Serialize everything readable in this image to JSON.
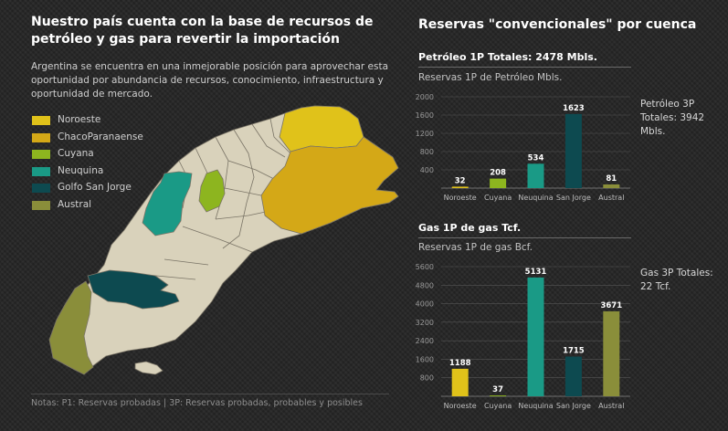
{
  "title": "Nuestro país cuenta con la base de recursos de petróleo y gas para revertir la importación",
  "intro": "Argentina se encuentra en una inmejorable posición para aprovechar esta oportunidad por abundancia de recursos, conocimiento, infraestructura y oportunidad de mercado.",
  "legend": [
    {
      "label": "Noroeste",
      "color": "#e0c21a"
    },
    {
      "label": "ChacoParanaense",
      "color": "#d4a817"
    },
    {
      "label": "Cuyana",
      "color": "#8db51f"
    },
    {
      "label": "Neuquina",
      "color": "#1a9a86"
    },
    {
      "label": "Golfo San Jorge",
      "color": "#0d4a50"
    },
    {
      "label": "Austral",
      "color": "#8a8e3a"
    }
  ],
  "notes": "Notas: P1: Reservas probadas | 3P: Reservas probadas, probables y posibles",
  "right_title": "Reservas \"convencionales\" por cuenca",
  "oil": {
    "title": "Petróleo 1P Totales: 2478 Mbls.",
    "subtitle": "Reservas 1P de Petróleo Mbls.",
    "side_note": "Petróleo 3P Totales: 3942 Mbls."
  },
  "gas": {
    "title": "Gas 1P de gas Tcf.",
    "subtitle": "Reservas 1P de gas Bcf.",
    "side_note": "Gas 3P Totales: 22 Tcf."
  },
  "chart_data": [
    {
      "type": "bar",
      "title": "Reservas 1P de Petróleo Mbls.",
      "categories": [
        "Noroeste",
        "Cuyana",
        "Neuquina",
        "San Jorge",
        "Austral"
      ],
      "values": [
        32,
        208,
        534,
        1623,
        81
      ],
      "colors": [
        "#e0c21a",
        "#8db51f",
        "#1a9a86",
        "#0d4a50",
        "#8a8e3a"
      ],
      "yticks": [
        400,
        800,
        1200,
        1600,
        2000
      ],
      "ylim": [
        0,
        2000
      ],
      "grid": true
    },
    {
      "type": "bar",
      "title": "Reservas 1P de gas Bcf.",
      "categories": [
        "Noroeste",
        "Cuyana",
        "Neuquina",
        "San Jorge",
        "Austral"
      ],
      "values": [
        1188,
        37,
        5131,
        1715,
        3671
      ],
      "colors": [
        "#e0c21a",
        "#8db51f",
        "#1a9a86",
        "#0d4a50",
        "#8a8e3a"
      ],
      "yticks": [
        800,
        1600,
        2400,
        3200,
        4000,
        4800,
        5600
      ],
      "ylim": [
        0,
        5600
      ],
      "grid": true
    }
  ]
}
